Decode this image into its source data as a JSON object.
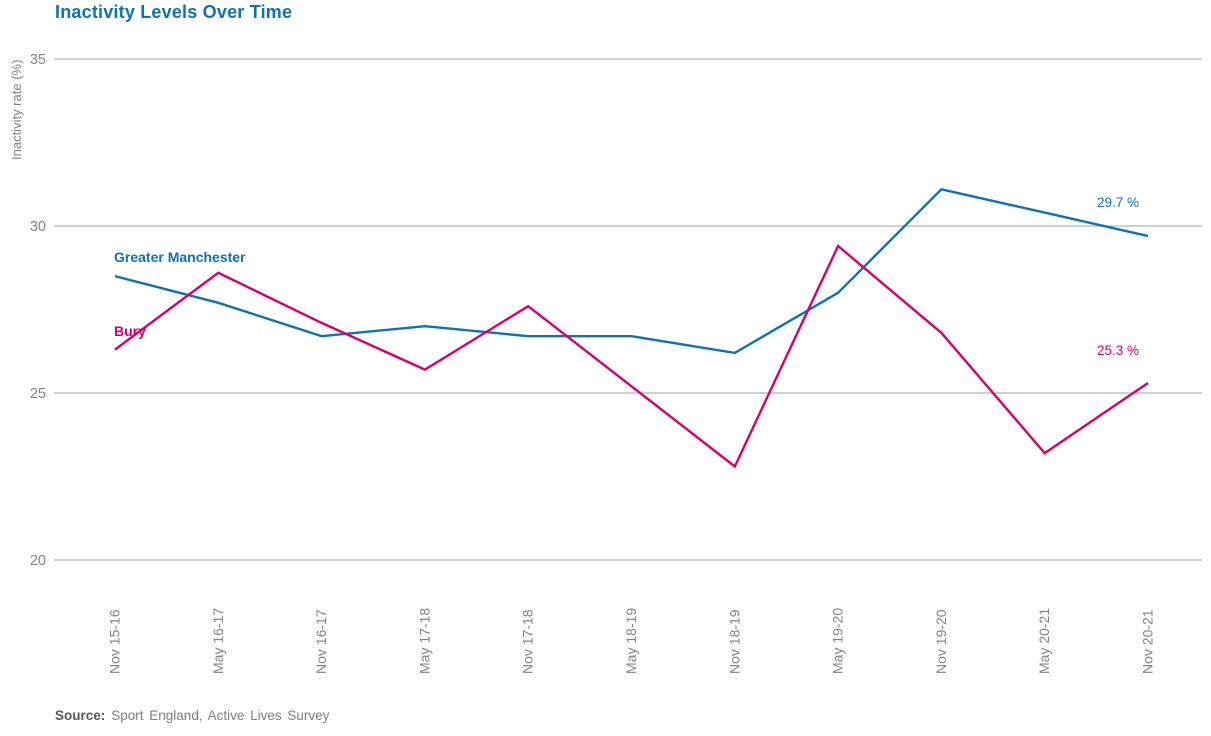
{
  "chart_data": {
    "type": "line",
    "title": "Inactivity Levels Over Time",
    "ylabel": "Inactivity rate (%)",
    "xlabel": "",
    "categories": [
      "Nov 15-16",
      "May 16-17",
      "Nov 16-17",
      "May 17-18",
      "Nov 17-18",
      "May 18-19",
      "Nov 18-19",
      "May 19-20",
      "Nov 19-20",
      "May 20-21",
      "Nov 20-21"
    ],
    "series": [
      {
        "name": "Greater Manchester",
        "color": "#0f72b4",
        "values": [
          28.5,
          27.7,
          26.7,
          27.0,
          26.7,
          26.7,
          26.2,
          28.0,
          31.1,
          30.4,
          29.7
        ],
        "end_label": "29.7 %"
      },
      {
        "name": "Bury",
        "color": "#d4006e",
        "values": [
          26.3,
          28.6,
          27.1,
          25.7,
          27.6,
          25.2,
          22.8,
          29.4,
          26.8,
          23.2,
          25.3
        ],
        "end_label": "25.3 %"
      }
    ],
    "yticks": [
      35,
      30,
      25,
      20
    ],
    "ylim": [
      20,
      35
    ],
    "grid": "horizontal",
    "legend_position": "inline-left"
  },
  "source": {
    "label": "Source:",
    "text": "Sport England, Active Lives Survey"
  },
  "colors": {
    "blue": "#0f72b4",
    "pink": "#d4006e",
    "axis_text": "#848484",
    "gridline": "#b3b3b3"
  }
}
